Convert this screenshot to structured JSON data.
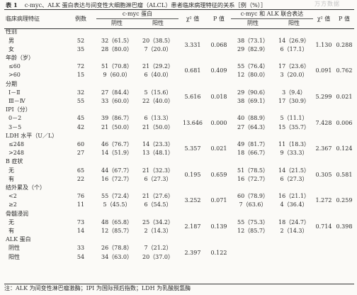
{
  "title": {
    "number": "表 1",
    "text": "c-myc、ALK 蛋白表达与间变性大细胞淋巴瘤（ALCL）患者临床病理特征的关系［例（%）］"
  },
  "watermark": "万方数据",
  "headers": {
    "feature": "临床病理特征",
    "cases": "例数",
    "cmyc_group": "c-myc 蛋白",
    "chi1": "χ² 值",
    "p1": "P 值",
    "combined_group": "c-myc 和 ALK 联合表达",
    "chi2": "χ² 值",
    "p2": "P 值",
    "negative": "阴性",
    "positive": "阳性",
    "negative2": "阴性",
    "positive2": "阳性"
  },
  "groups": [
    {
      "name": "性别",
      "chi1": "3.331",
      "p1": "0.068",
      "chi2": "1.130",
      "p2": "0.288",
      "rows": [
        {
          "label": "男",
          "n": "52",
          "cneg": "32（61.5）",
          "cpos": "20（38.5）",
          "jneg": "38（73.1）",
          "jpos": "14（26.9）"
        },
        {
          "label": "女",
          "n": "35",
          "cneg": "28（80.0）",
          "cpos": "7（20.0）",
          "jneg": "29（82.9）",
          "jpos": "6（17.1）"
        }
      ]
    },
    {
      "name": "年龄（岁）",
      "chi1": "0.681",
      "p1": "0.409",
      "chi2": "0.091",
      "p2": "0.762",
      "rows": [
        {
          "label": "≤60",
          "n": "72",
          "cneg": "51（70.8）",
          "cpos": "21（29.2）",
          "jneg": "55（76.4）",
          "jpos": "17（23.6）"
        },
        {
          "label": ">60",
          "n": "15",
          "cneg": "9（60.0）",
          "cpos": "6（40.0）",
          "jneg": "12（80.0）",
          "jpos": "3（20.0）"
        }
      ]
    },
    {
      "name": "分期",
      "chi1": "5.616",
      "p1": "0.018",
      "chi2": "5.299",
      "p2": "0.021",
      "rows": [
        {
          "label": "Ⅰ－Ⅱ",
          "n": "32",
          "cneg": "27（84.4）",
          "cpos": "5（15.6）",
          "jneg": "29（90.6）",
          "jpos": "3（9.4）"
        },
        {
          "label": "Ⅲ－Ⅳ",
          "n": "55",
          "cneg": "33（60.0）",
          "cpos": "22（40.0）",
          "jneg": "38（69.1）",
          "jpos": "17（30.9）"
        }
      ]
    },
    {
      "name": "IPI（分）",
      "chi1": "13.646",
      "p1": "0.000",
      "chi2": "7.428",
      "p2": "0.006",
      "rows": [
        {
          "label": "0－2",
          "n": "45",
          "cneg": "39（86.7）",
          "cpos": "6（13.3）",
          "jneg": "40（88.9）",
          "jpos": "5（11.1）"
        },
        {
          "label": "3－5",
          "n": "42",
          "cneg": "21（50.0）",
          "cpos": "21（50.0）",
          "jneg": "27（64.3）",
          "jpos": "15（35.7）"
        }
      ]
    },
    {
      "name": "LDH 水平（U／L）",
      "chi1": "5.357",
      "p1": "0.021",
      "chi2": "2.367",
      "p2": "0.124",
      "rows": [
        {
          "label": "≤248",
          "n": "60",
          "cneg": "46（76.7）",
          "cpos": "14（23.3）",
          "jneg": "49（81.7）",
          "jpos": "11（18.3）"
        },
        {
          "label": ">248",
          "n": "27",
          "cneg": "14（51.9）",
          "cpos": "13（48.1）",
          "jneg": "18（66.7）",
          "jpos": "9（33.3）"
        }
      ]
    },
    {
      "name": "B 症状",
      "chi1": "0.195",
      "p1": "0.659",
      "chi2": "0.305",
      "p2": "0.581",
      "rows": [
        {
          "label": "无",
          "n": "65",
          "cneg": "44（67.7）",
          "cpos": "21（32.3）",
          "jneg": "51（78.5）",
          "jpos": "14（21.5）"
        },
        {
          "label": "有",
          "n": "22",
          "cneg": "16（72.7）",
          "cpos": "6（27.3）",
          "jneg": "16（72.7）",
          "jpos": "6（27.3）"
        }
      ]
    },
    {
      "name": "结外累及（个）",
      "chi1": "3.252",
      "p1": "0.071",
      "chi2": "1.272",
      "p2": "0.259",
      "rows": [
        {
          "label": "<2",
          "n": "76",
          "cneg": "55（72.4）",
          "cpos": "21（27.6）",
          "jneg": "60（78.9）",
          "jpos": "16（21.1）"
        },
        {
          "label": "≥2",
          "n": "11",
          "cneg": "5（45.5）",
          "cpos": "6（54.5）",
          "jneg": "7（63.6）",
          "jpos": "4（36.4）"
        }
      ]
    },
    {
      "name": "骨髓浸润",
      "chi1": "2.187",
      "p1": "0.139",
      "chi2": "0.714",
      "p2": "0.398",
      "rows": [
        {
          "label": "无",
          "n": "73",
          "cneg": "48（65.8）",
          "cpos": "25（34.2）",
          "jneg": "55（75.3）",
          "jpos": "18（24.7）"
        },
        {
          "label": "有",
          "n": "14",
          "cneg": "12（85.7）",
          "cpos": "2（14.3）",
          "jneg": "12（85.7）",
          "jpos": "2（14.3）"
        }
      ]
    },
    {
      "name": "ALK 蛋白",
      "chi1": "2.397",
      "p1": "0.122",
      "chi2": "",
      "p2": "",
      "rows": [
        {
          "label": "阴性",
          "n": "33",
          "cneg": "26（78.8）",
          "cpos": "7（21.2）",
          "jneg": "",
          "jpos": ""
        },
        {
          "label": "阳性",
          "n": "54",
          "cneg": "34（63.0）",
          "cpos": "20（37.0）",
          "jneg": "",
          "jpos": ""
        }
      ]
    }
  ],
  "note": "注：ALK 为间变性淋巴瘤激酶；IPI 为国际预后指数；LDH 为乳酸脱氢酶"
}
